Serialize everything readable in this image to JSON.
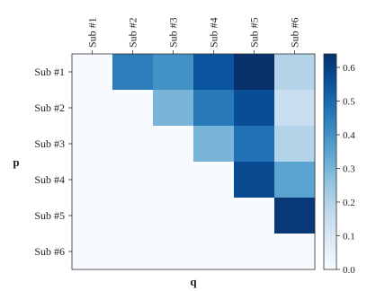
{
  "chart_data": {
    "type": "heatmap",
    "title": "",
    "xlabel": "q",
    "ylabel": "p",
    "x_categories": [
      "Sub #1",
      "Sub #2",
      "Sub #3",
      "Sub #4",
      "Sub #5",
      "Sub #6"
    ],
    "y_categories": [
      "Sub #1",
      "Sub #2",
      "Sub #3",
      "Sub #4",
      "Sub #5",
      "Sub #6"
    ],
    "x_tick_position": "top",
    "values": [
      [
        0,
        0.45,
        0.4,
        0.55,
        0.64,
        0.2
      ],
      [
        0,
        0,
        0.3,
        0.46,
        0.57,
        0.15
      ],
      [
        0,
        0,
        0,
        0.3,
        0.48,
        0.2
      ],
      [
        0,
        0,
        0,
        0,
        0.58,
        0.35
      ],
      [
        0,
        0,
        0,
        0,
        0,
        0.62
      ],
      [
        0,
        0,
        0,
        0,
        0,
        0
      ]
    ],
    "colormap": "Blues",
    "colorbar": {
      "min": 0.0,
      "max": 0.64,
      "ticks": [
        0.0,
        0.1,
        0.2,
        0.3,
        0.4,
        0.5,
        0.6
      ],
      "tick_labels": [
        "0.0",
        "0.1",
        "0.2",
        "0.3",
        "0.4",
        "0.5",
        "0.6"
      ]
    },
    "grid": false
  }
}
